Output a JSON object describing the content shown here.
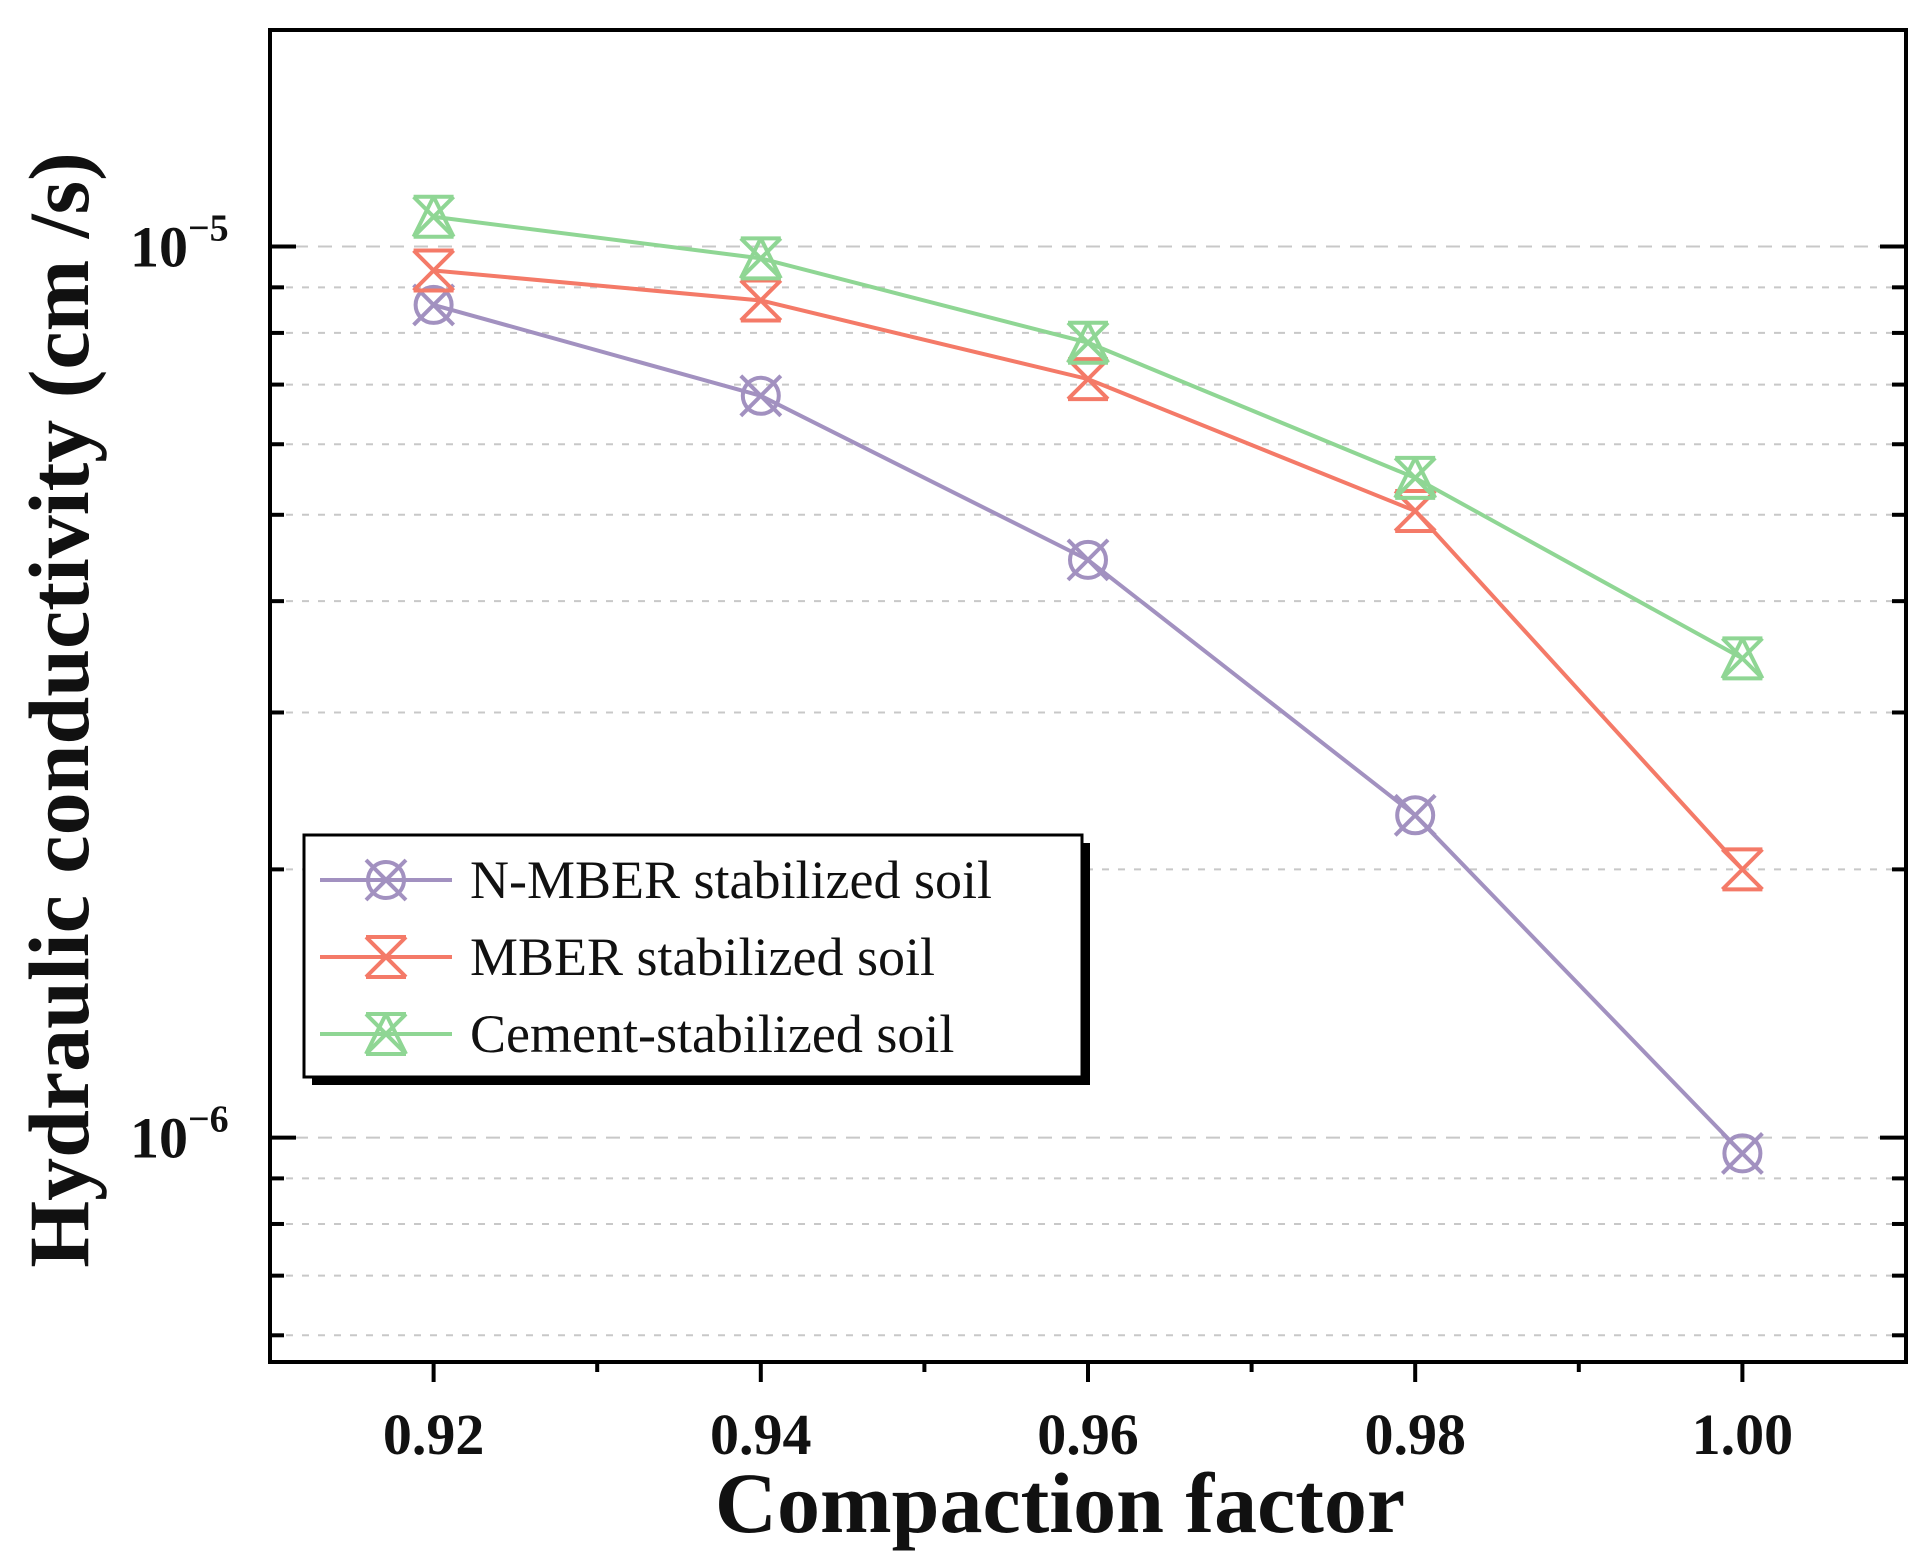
{
  "chart_data": {
    "type": "line",
    "title": "",
    "xlabel": "Compaction factor",
    "ylabel": "Hydraulic conductivity (cm /s)",
    "yscale": "log",
    "x": [
      0.92,
      0.94,
      0.96,
      0.98,
      1.0
    ],
    "x_tick_labels": [
      "0.92",
      "0.94",
      "0.96",
      "0.98",
      "1.00"
    ],
    "xlim": [
      0.91,
      1.01
    ],
    "ylim": [
      5.6e-07,
      1.75e-05
    ],
    "y_ticks": [
      {
        "value": 1e-06,
        "base": "10",
        "exp": "−6"
      },
      {
        "value": 1e-05,
        "base": "10",
        "exp": "−5"
      }
    ],
    "grid": true,
    "legend_position": "bottom-left",
    "series": [
      {
        "name": "N-MBER stabilized soil",
        "color": "#a291c0",
        "marker": "circle-x",
        "values": [
          8.6e-06,
          6.8e-06,
          4.45e-06,
          2.3e-06,
          9.6e-07
        ]
      },
      {
        "name": "MBER stabilized soil",
        "color": "#f47a68",
        "marker": "x-hourglass",
        "values": [
          9.4e-06,
          8.7e-06,
          7.1e-06,
          5.05e-06,
          2e-06
        ]
      },
      {
        "name": "Cement-stabilized soil",
        "color": "#8fd694",
        "marker": "x-triangle",
        "values": [
          1.08e-05,
          9.7e-06,
          7.8e-06,
          5.5e-06,
          3.45e-06
        ]
      }
    ]
  }
}
